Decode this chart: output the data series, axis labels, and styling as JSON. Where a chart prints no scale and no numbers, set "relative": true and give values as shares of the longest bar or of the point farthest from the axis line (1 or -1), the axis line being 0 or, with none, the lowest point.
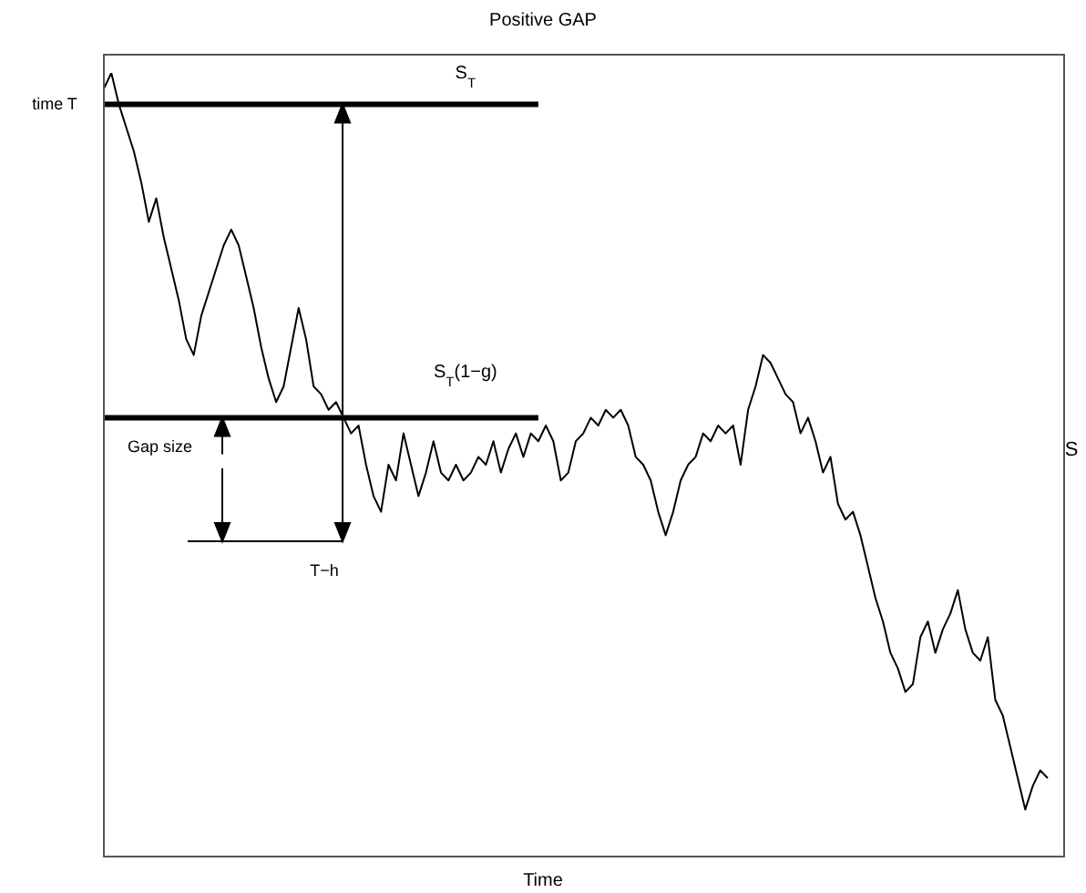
{
  "chart_data": {
    "type": "line",
    "title": "Positive GAP",
    "xlabel": "Time",
    "ylabel": "S",
    "relative": true,
    "categories": [
      null,
      null,
      null,
      null,
      null,
      null,
      null,
      null,
      null,
      null,
      null,
      null,
      null,
      null,
      null,
      null,
      null,
      null,
      null,
      null,
      null,
      null,
      null,
      null,
      null,
      null,
      null,
      null,
      null,
      null,
      null,
      null,
      null,
      null,
      null,
      null,
      null,
      null,
      null,
      null,
      null,
      null,
      null,
      null,
      null,
      null,
      null,
      null,
      null,
      null,
      null,
      null,
      null,
      null,
      null,
      null,
      null,
      null,
      null,
      null,
      null,
      null,
      null,
      null,
      null,
      null,
      null,
      null,
      null,
      null,
      null,
      null,
      null,
      null,
      null,
      null,
      null,
      null,
      null,
      null,
      null,
      null,
      null,
      null,
      null,
      null,
      null,
      null,
      null,
      null,
      null,
      null,
      null,
      null,
      null,
      null,
      null,
      null,
      null,
      null,
      null,
      null,
      null,
      null,
      null,
      null,
      null,
      null,
      null,
      null,
      null,
      null,
      null,
      null,
      null,
      null,
      null,
      null,
      null,
      null,
      null,
      null,
      null,
      null,
      null,
      null,
      null
    ],
    "series": [
      {
        "color": "#000000",
        "values": [
          0.98,
          1.0,
          0.96,
          0.93,
          0.9,
          0.86,
          0.81,
          0.84,
          0.79,
          0.75,
          0.71,
          0.66,
          0.64,
          0.69,
          0.72,
          0.75,
          0.78,
          0.8,
          0.78,
          0.74,
          0.7,
          0.65,
          0.61,
          0.58,
          0.6,
          0.65,
          0.7,
          0.66,
          0.6,
          0.59,
          0.57,
          0.58,
          0.56,
          0.54,
          0.55,
          0.5,
          0.46,
          0.44,
          0.5,
          0.48,
          0.54,
          0.5,
          0.46,
          0.49,
          0.53,
          0.49,
          0.48,
          0.5,
          0.48,
          0.49,
          0.51,
          0.5,
          0.53,
          0.49,
          0.52,
          0.54,
          0.51,
          0.54,
          0.53,
          0.55,
          0.53,
          0.48,
          0.49,
          0.53,
          0.54,
          0.56,
          0.55,
          0.57,
          0.56,
          0.57,
          0.55,
          0.51,
          0.5,
          0.48,
          0.44,
          0.41,
          0.44,
          0.48,
          0.5,
          0.51,
          0.54,
          0.53,
          0.55,
          0.54,
          0.55,
          0.5,
          0.57,
          0.6,
          0.64,
          0.63,
          0.61,
          0.59,
          0.58,
          0.54,
          0.56,
          0.53,
          0.49,
          0.51,
          0.45,
          0.43,
          0.44,
          0.41,
          0.37,
          0.33,
          0.3,
          0.26,
          0.24,
          0.21,
          0.22,
          0.28,
          0.3,
          0.26,
          0.29,
          0.31,
          0.34,
          0.29,
          0.26,
          0.25,
          0.28,
          0.2,
          0.18,
          0.14,
          0.1,
          0.06,
          0.09,
          0.11,
          0.1
        ]
      }
    ],
    "ref_lines": [
      {
        "axis": "y",
        "value": 0.96,
        "label": "S$_{T}$"
      },
      {
        "axis": "y",
        "value": 0.56,
        "label": "S$_{T}$(1−g)"
      }
    ],
    "annotations": [
      "time T",
      "Gap size",
      "T−h"
    ]
  }
}
